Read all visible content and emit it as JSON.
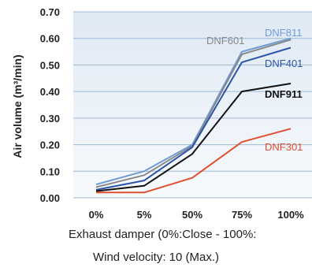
{
  "chart_data": {
    "type": "line",
    "categories": [
      "0%",
      "5%",
      "50%",
      "75%",
      "100%"
    ],
    "xlabel": "Exhaust damper (0%:Close - 100%:",
    "ylabel": "Air volume (m³/min)",
    "ylim": [
      0,
      0.7
    ],
    "yticks": [
      "0.00",
      "0.10",
      "0.20",
      "0.30",
      "0.40",
      "0.50",
      "0.60",
      "0.70"
    ],
    "grid": true,
    "legend": "inline labels at line ends",
    "plot_background": "#e9f0f7",
    "series": [
      {
        "name": "DNF811",
        "color": "#6f9bd6",
        "values": [
          0.05,
          0.1,
          0.2,
          0.55,
          0.6
        ]
      },
      {
        "name": "DNF601",
        "color": "#888888",
        "values": [
          0.04,
          0.085,
          0.195,
          0.54,
          0.595
        ]
      },
      {
        "name": "DNF401",
        "color": "#2b54a8",
        "values": [
          0.03,
          0.065,
          0.19,
          0.51,
          0.565
        ]
      },
      {
        "name": "DNF911",
        "color": "#111111",
        "values": [
          0.025,
          0.045,
          0.165,
          0.4,
          0.43
        ]
      },
      {
        "name": "DNF301",
        "color": "#e05030",
        "values": [
          0.02,
          0.02,
          0.075,
          0.21,
          0.26
        ]
      }
    ]
  },
  "footnote": "Wind velocity: 10 (Max.)"
}
